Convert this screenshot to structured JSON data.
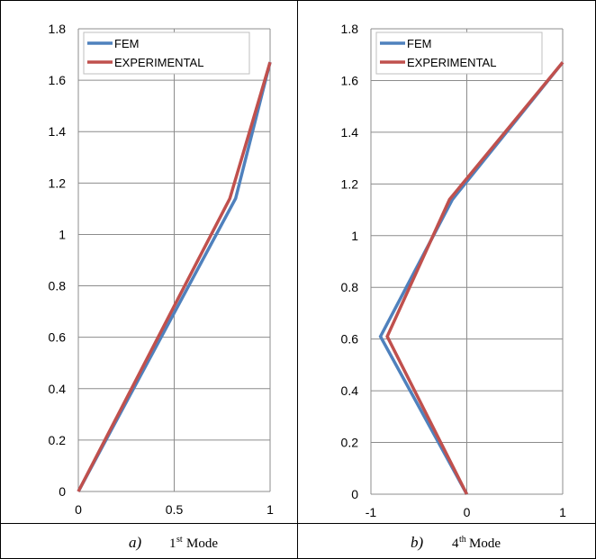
{
  "chart_data": [
    {
      "type": "line",
      "xlim": [
        0,
        1
      ],
      "ylim": [
        0,
        1.8
      ],
      "xticks": [
        "0",
        "0.5",
        "1"
      ],
      "yticks": [
        "0",
        "0.2",
        "0.4",
        "0.6",
        "0.8",
        "1",
        "1.2",
        "1.4",
        "1.6",
        "1.8"
      ],
      "grid": true,
      "legend_position": "top-left",
      "series": [
        {
          "name": "FEM",
          "color": "#4F81BD",
          "x": [
            0,
            0.82,
            1
          ],
          "y": [
            0,
            1.14,
            1.67
          ]
        },
        {
          "name": "EXPERIMENTAL",
          "color": "#C0504D",
          "x": [
            0,
            0.79,
            1
          ],
          "y": [
            0,
            1.14,
            1.67
          ]
        }
      ],
      "caption": {
        "letter": "a)",
        "ordinal": "1",
        "suffix": "st",
        "text": "Mode"
      }
    },
    {
      "type": "line",
      "xlim": [
        -1,
        1
      ],
      "ylim": [
        0,
        1.8
      ],
      "xticks": [
        "-1",
        "0",
        "1"
      ],
      "yticks": [
        "0",
        "0.2",
        "0.4",
        "0.6",
        "0.8",
        "1",
        "1.2",
        "1.4",
        "1.6",
        "1.8"
      ],
      "grid": true,
      "legend_position": "top-left",
      "series": [
        {
          "name": "FEM",
          "color": "#4F81BD",
          "x": [
            0,
            -0.9,
            -0.15,
            1
          ],
          "y": [
            0,
            0.61,
            1.14,
            1.67
          ]
        },
        {
          "name": "EXPERIMENTAL",
          "color": "#C0504D",
          "x": [
            0,
            -0.83,
            -0.18,
            1
          ],
          "y": [
            0,
            0.61,
            1.14,
            1.67
          ]
        }
      ],
      "caption": {
        "letter": "b)",
        "ordinal": "4",
        "suffix": "th",
        "text": "Mode"
      }
    }
  ]
}
